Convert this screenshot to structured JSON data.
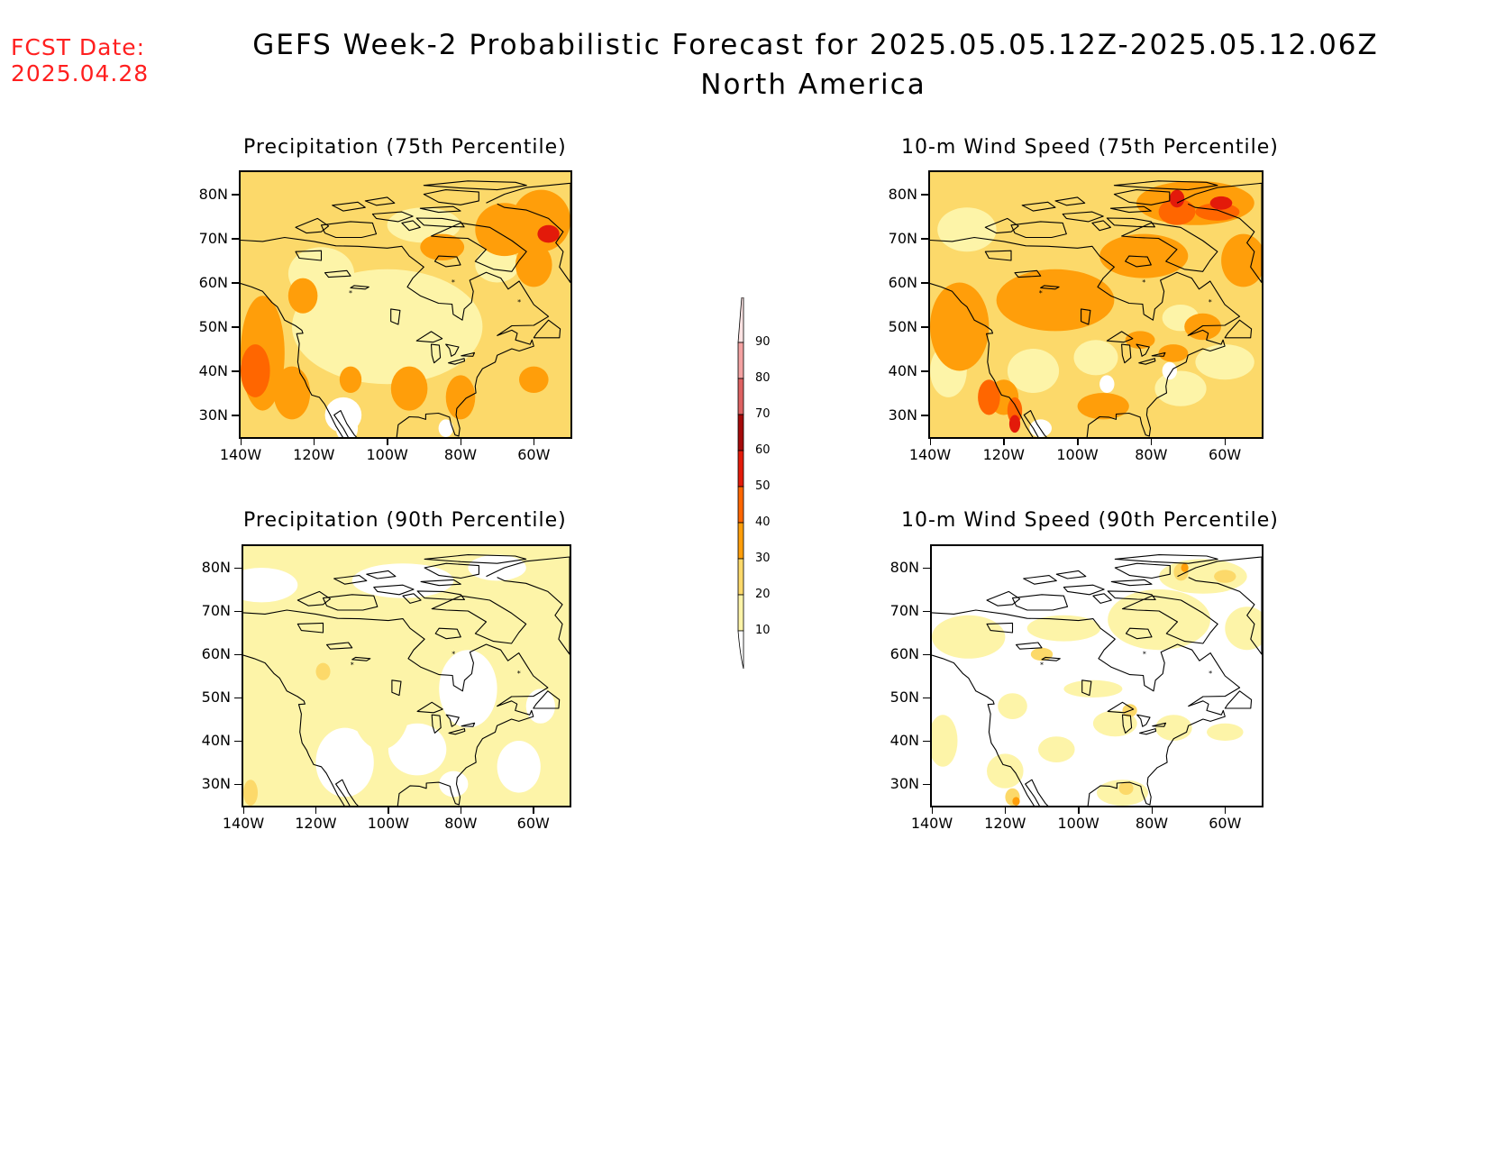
{
  "header": {
    "fcst_date_label": "FCST Date:",
    "fcst_date_value": "2025.04.28",
    "title_line1": "GEFS Week-2 Probabilistic Forecast for 2025.05.05.12Z-2025.05.12.06Z",
    "title_line2": "North America"
  },
  "panels": [
    {
      "title": "Precipitation (75th Percentile)",
      "variable": "precipitation",
      "percentile": 75
    },
    {
      "title": "10-m Wind Speed (75th Percentile)",
      "variable": "wind",
      "percentile": 75
    },
    {
      "title": "Precipitation (90th Percentile)",
      "variable": "precipitation",
      "percentile": 90
    },
    {
      "title": "10-m Wind Speed (90th Percentile)",
      "variable": "wind",
      "percentile": 90
    }
  ],
  "axes": {
    "lat_labels": [
      "80N",
      "70N",
      "60N",
      "50N",
      "40N",
      "30N"
    ],
    "lon_labels": [
      "140W",
      "120W",
      "100W",
      "80W",
      "60W"
    ]
  },
  "colorbar": {
    "labels": [
      "90",
      "80",
      "70",
      "60",
      "50",
      "40",
      "30",
      "20",
      "10"
    ],
    "colors": [
      "#fde3e3",
      "#f4a2a2",
      "#de6262",
      "#a50a0a",
      "#e31a0a",
      "#ff6600",
      "#ff9e0a",
      "#fcd96a",
      "#fdf4a8"
    ]
  },
  "colors": {
    "fcst_date": "#ff1f1f",
    "level_10": "#fdf4a8",
    "level_20": "#fcd96a",
    "level_30": "#ff9e0a",
    "level_40": "#ff6600",
    "level_50": "#e31a0a"
  }
}
